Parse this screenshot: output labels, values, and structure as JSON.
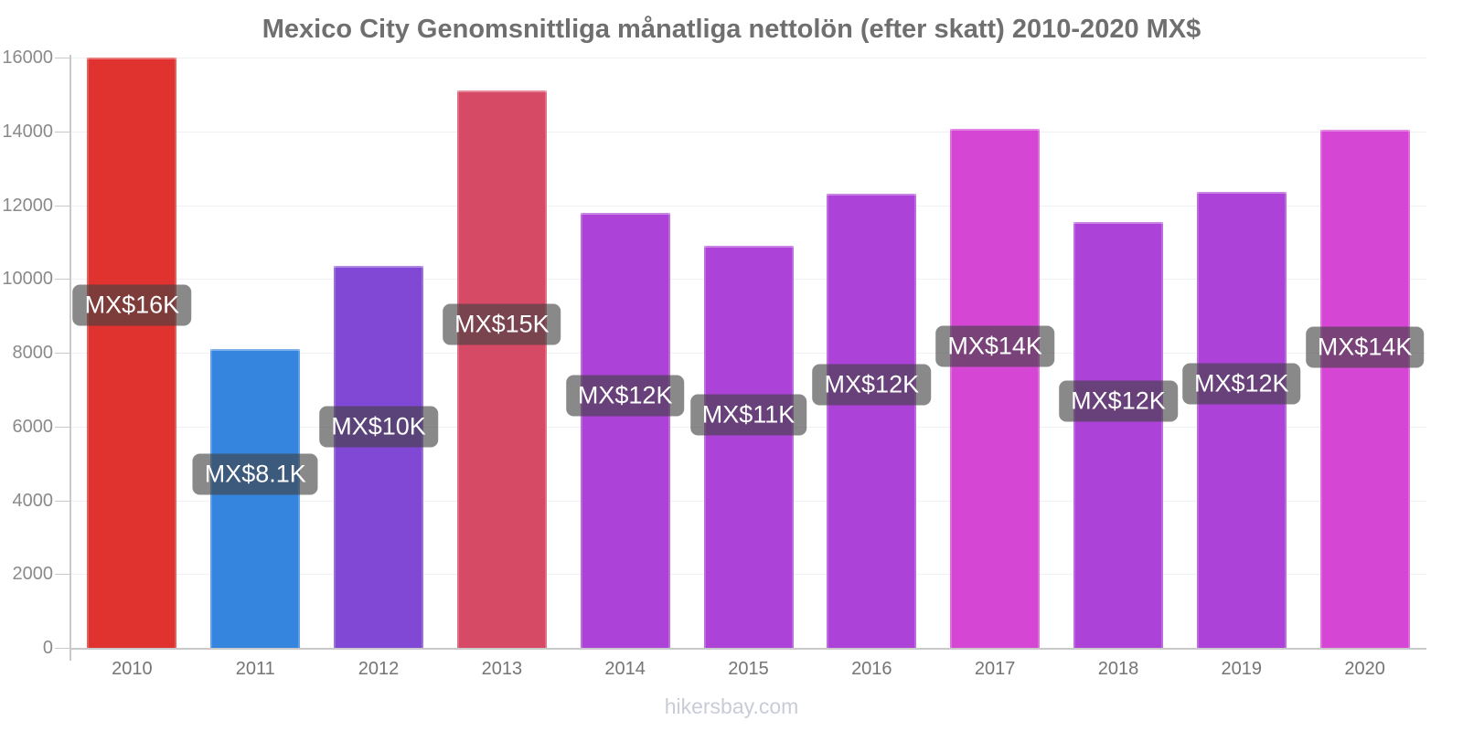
{
  "chart_data": {
    "type": "bar",
    "title": "Mexico City Genomsnittliga månatliga nettolön (efter skatt) 2010-2020 MX$",
    "categories": [
      "2010",
      "2011",
      "2012",
      "2013",
      "2014",
      "2015",
      "2016",
      "2017",
      "2018",
      "2019",
      "2020"
    ],
    "values": [
      16000,
      8100,
      10350,
      15100,
      11800,
      10900,
      12300,
      14080,
      11550,
      12350,
      14050
    ],
    "bar_labels": [
      "MX$16K",
      "MX$8.1K",
      "MX$10K",
      "MX$15K",
      "MX$12K",
      "MX$11K",
      "MX$12K",
      "MX$14K",
      "MX$12K",
      "MX$12K",
      "MX$14K"
    ],
    "bar_colors": [
      "#e03330",
      "#3585de",
      "#8147d5",
      "#d74a66",
      "#ac42d8",
      "#ac42d8",
      "#ac42d8",
      "#d546d5",
      "#ac42d8",
      "#ac42d8",
      "#d546d5"
    ],
    "xlabel": "",
    "ylabel": "",
    "ylim": [
      0,
      16000
    ],
    "y_ticks": [
      0,
      2000,
      4000,
      6000,
      8000,
      10000,
      12000,
      14000,
      16000
    ],
    "grid": "horizontal",
    "legend": "none"
  },
  "footer": {
    "text": "hikersbay.com"
  },
  "style": {
    "title_color": "#6f6f6f",
    "axis_line_color": "#c9c9c9",
    "gridline_color": "#f0f1f4",
    "y_tick_label_color": "#8a8a8a",
    "x_tick_label_color": "#757575",
    "value_label_bg": "rgba(64,64,64,0.62)",
    "value_label_text_color": "#ffffff",
    "watermark_color": "#c9ccd6"
  }
}
